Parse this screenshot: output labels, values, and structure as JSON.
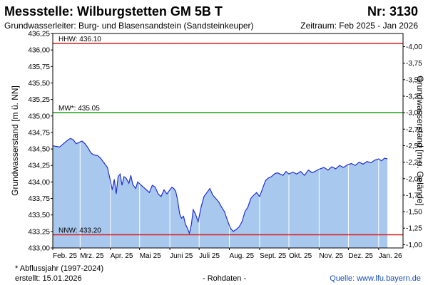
{
  "header": {
    "title": "Messstelle: Wilburgstetten GM 5B T",
    "number": "Nr: 3130",
    "aquifer": "Grundwasserleiter:   Burg- und Blasensandstein (Sandsteinkeuper)",
    "period": "Zeitraum: Feb 2025 - Jan 2026"
  },
  "footer": {
    "footnote": "* Abflussjahr (1997-2024)",
    "created": "erstellt:  15.01.2026",
    "rohdaten": "- Rohdaten -",
    "source": "Quelle:  www.lfu.bayern.de"
  },
  "colors": {
    "area_fill": "#a8c8ee",
    "line": "#1f2fd6",
    "hhw": "#e01818",
    "mw": "#1a9a1a",
    "nnw": "#e01818",
    "grid": "#ffffff"
  },
  "chart_data": {
    "type": "area",
    "ylabel": "Grundwasserstand [m ü. NN]",
    "y2label": "Grundwasserstand [m u. Gelände]",
    "ylim": [
      433.0,
      436.25
    ],
    "y2lim": [
      -0.95,
      -4.2
    ],
    "yticks": [
      "436,25",
      "436,00",
      "435,75",
      "435,50",
      "435,25",
      "435,00",
      "434,75",
      "434,50",
      "434,25",
      "434,00",
      "433,75",
      "433,50",
      "433,25",
      "433,00"
    ],
    "y2ticks": [
      "-4,00",
      "-3,75",
      "-3,50",
      "-3,25",
      "-3,00",
      "-2,75",
      "-2,50",
      "-2,25",
      "-2,00",
      "-1,75",
      "-1,50",
      "-1,25",
      "-1,00"
    ],
    "xticks": [
      "Feb. 25",
      "Mrz. 25",
      "Apr. 25",
      "Mai 25",
      "Juni 25",
      "Juli 25",
      "Aug. 25",
      "Sept. 25",
      "Okt. 25",
      "Nov. 25",
      "Dez. 25",
      "Jan. 26"
    ],
    "reference_lines": [
      {
        "label": "HHW: 436.10",
        "value": 436.1
      },
      {
        "label": "MW*: 435.05",
        "value": 435.05
      },
      {
        "label": "NNW: 433.20",
        "value": 433.2
      }
    ],
    "series": [
      {
        "x": [
          "2025-02-01",
          "2025-02-04",
          "2025-02-08",
          "2025-02-12",
          "2025-02-16",
          "2025-02-19",
          "2025-02-22",
          "2025-02-25",
          "2025-02-28",
          "2025-03-03",
          "2025-03-06",
          "2025-03-09",
          "2025-03-12",
          "2025-03-15",
          "2025-03-19",
          "2025-03-22",
          "2025-03-26",
          "2025-03-29",
          "2025-04-01",
          "2025-04-03",
          "2025-04-05",
          "2025-04-07",
          "2025-04-09",
          "2025-04-11",
          "2025-04-13",
          "2025-04-15",
          "2025-04-17",
          "2025-04-20",
          "2025-04-22",
          "2025-04-24",
          "2025-04-27",
          "2025-04-29",
          "2025-05-02",
          "2025-05-05",
          "2025-05-08",
          "2025-05-11",
          "2025-05-14",
          "2025-05-17",
          "2025-05-20",
          "2025-05-23",
          "2025-05-26",
          "2025-05-29",
          "2025-06-01",
          "2025-06-03",
          "2025-06-05",
          "2025-06-07",
          "2025-06-09",
          "2025-06-11",
          "2025-06-13",
          "2025-06-15",
          "2025-06-17",
          "2025-06-19",
          "2025-06-21",
          "2025-06-23",
          "2025-06-25",
          "2025-06-27",
          "2025-06-30",
          "2025-07-03",
          "2025-07-06",
          "2025-07-09",
          "2025-07-12",
          "2025-07-15",
          "2025-07-18",
          "2025-07-21",
          "2025-07-24",
          "2025-07-27",
          "2025-07-30",
          "2025-08-02",
          "2025-08-05",
          "2025-08-08",
          "2025-08-11",
          "2025-08-14",
          "2025-08-17",
          "2025-08-20",
          "2025-08-23",
          "2025-08-26",
          "2025-08-29",
          "2025-09-01",
          "2025-09-04",
          "2025-09-07",
          "2025-09-10",
          "2025-09-13",
          "2025-09-16",
          "2025-09-19",
          "2025-09-22",
          "2025-09-25",
          "2025-09-28",
          "2025-10-01",
          "2025-10-05",
          "2025-10-09",
          "2025-10-13",
          "2025-10-17",
          "2025-10-21",
          "2025-10-25",
          "2025-10-29",
          "2025-11-02",
          "2025-11-06",
          "2025-11-10",
          "2025-11-14",
          "2025-11-18",
          "2025-11-22",
          "2025-11-26",
          "2025-11-30",
          "2025-12-04",
          "2025-12-08",
          "2025-12-12",
          "2025-12-16",
          "2025-12-20",
          "2025-12-24",
          "2025-12-28",
          "2026-01-01",
          "2026-01-04",
          "2026-01-07",
          "2026-01-10"
        ],
        "y": [
          434.55,
          434.54,
          434.53,
          434.58,
          434.63,
          434.66,
          434.64,
          434.58,
          434.6,
          434.62,
          434.58,
          434.52,
          434.44,
          434.41,
          434.4,
          434.36,
          434.28,
          434.22,
          434.02,
          433.88,
          434.04,
          433.82,
          434.08,
          434.12,
          433.95,
          434.08,
          434.06,
          433.98,
          434.1,
          433.96,
          433.9,
          434.0,
          433.96,
          433.92,
          433.88,
          433.84,
          433.95,
          433.92,
          433.82,
          433.78,
          433.88,
          433.82,
          433.88,
          433.92,
          433.9,
          433.86,
          433.72,
          433.52,
          433.45,
          433.48,
          433.36,
          433.3,
          433.22,
          433.35,
          433.58,
          433.52,
          433.4,
          433.62,
          433.78,
          433.84,
          433.9,
          433.8,
          433.75,
          433.7,
          433.62,
          433.55,
          433.42,
          433.3,
          433.25,
          433.28,
          433.32,
          433.4,
          433.55,
          433.62,
          433.75,
          433.8,
          433.84,
          433.78,
          433.9,
          434.02,
          434.06,
          434.08,
          434.12,
          434.14,
          434.12,
          434.1,
          434.16,
          434.12,
          434.15,
          434.12,
          434.16,
          434.1,
          434.18,
          434.14,
          434.17,
          434.2,
          434.22,
          434.18,
          434.23,
          434.2,
          434.25,
          434.22,
          434.26,
          434.28,
          434.25,
          434.3,
          434.27,
          434.31,
          434.29,
          434.33,
          434.35,
          434.32,
          434.36,
          434.35
        ]
      }
    ]
  }
}
